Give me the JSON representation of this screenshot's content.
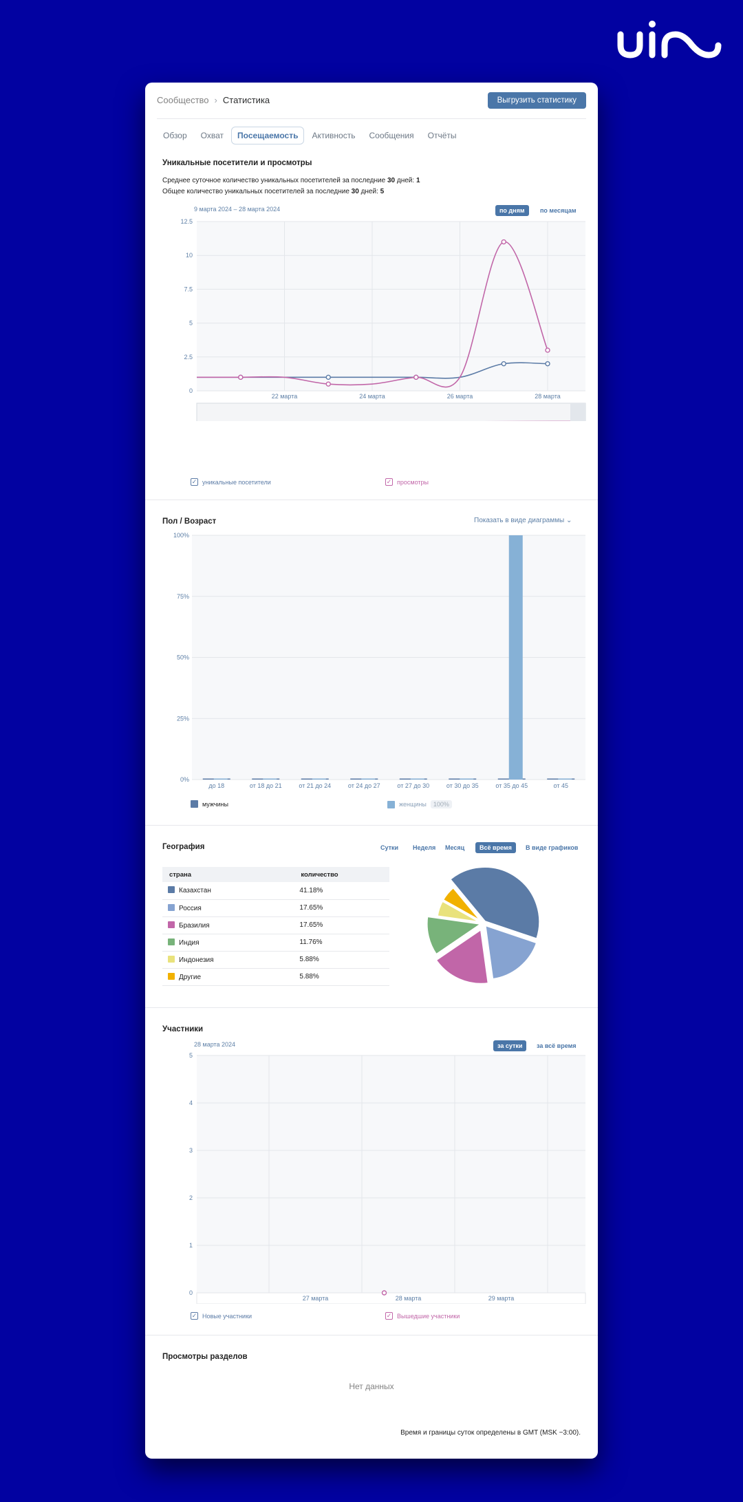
{
  "breadcrumb": {
    "parent": "Сообщество",
    "current": "Статистика"
  },
  "export_label": "Выгрузить статистику",
  "tabs": [
    {
      "label": "Обзор",
      "active": false
    },
    {
      "label": "Охват",
      "active": false
    },
    {
      "label": "Посещаемость",
      "active": true
    },
    {
      "label": "Активность",
      "active": false
    },
    {
      "label": "Сообщения",
      "active": false
    },
    {
      "label": "Отчёты",
      "active": false
    }
  ],
  "visitors": {
    "title": "Уникальные посетители и просмотры",
    "line1_prefix": "Среднее суточное количество уникальных посетителей за последние",
    "line1_days": "30",
    "line1_mid": "дней:",
    "line1_value": "1",
    "line2_prefix": "Общее количество уникальных посетителей за последние",
    "line2_days": "30",
    "line2_mid": "дней:",
    "line2_value": "5",
    "date_range": "9 марта 2024 – 28 марта 2024",
    "by_days": "по дням",
    "by_months": "по месяцам",
    "legend_unique": "уникальные посетители",
    "legend_views": "просмотры"
  },
  "gender": {
    "title": "Пол / Возраст",
    "show_as_chart": "Показать в виде диаграммы",
    "legend_men": "мужчины",
    "legend_women": "женщины",
    "women_badge": "100%"
  },
  "geo": {
    "title": "География",
    "filters": [
      "Сутки",
      "Неделя",
      "Месяц",
      "Всё время",
      "В виде графиков"
    ],
    "active_filter": "Всё время",
    "col_country": "страна",
    "col_count": "количество",
    "rows": [
      {
        "country": "Казахстан",
        "share": "41.18%",
        "color": "#5b7ba6"
      },
      {
        "country": "Россия",
        "share": "17.65%",
        "color": "#86a3d1"
      },
      {
        "country": "Бразилия",
        "share": "17.65%",
        "color": "#c166a8"
      },
      {
        "country": "Индия",
        "share": "11.76%",
        "color": "#78b37a"
      },
      {
        "country": "Индонезия",
        "share": "5.88%",
        "color": "#e9e27c"
      },
      {
        "country": "Другие",
        "share": "5.88%",
        "color": "#f1b100"
      }
    ]
  },
  "members": {
    "title": "Участники",
    "date": "28 марта 2024",
    "per_day": "за сутки",
    "all_time": "за всё время",
    "legend_new": "Новые участники",
    "legend_left": "Вышедшие участники"
  },
  "sections": {
    "title": "Просмотры разделов",
    "no_data": "Нет данных"
  },
  "timezone_note": "Время и границы суток определены в GMT (MSK −3:00).",
  "chart_data": [
    {
      "type": "line",
      "x": [
        "20 марта",
        "21 марта",
        "22 марта",
        "23 марта",
        "24 марта",
        "25 марта",
        "26 марта",
        "27 марта",
        "28 марта"
      ],
      "x_tick_labels": [
        "22 марта",
        "24 марта",
        "26 марта",
        "28 марта"
      ],
      "series": [
        {
          "name": "уникальные посетители",
          "color": "#5b7ba6",
          "values": [
            1,
            1,
            1,
            1,
            1,
            1,
            1,
            2,
            2
          ]
        },
        {
          "name": "просмотры",
          "color": "#c166a8",
          "values": [
            1,
            1,
            1,
            0.5,
            0.5,
            1,
            1,
            11,
            3
          ]
        }
      ],
      "y_ticks": [
        "0",
        "2.5",
        "5",
        "7.5",
        "10",
        "12.5"
      ],
      "ylim": [
        0,
        12.5
      ],
      "grid": true
    },
    {
      "type": "bar",
      "categories": [
        "до 18",
        "от 18 до 21",
        "от 21 до 24",
        "от 24 до 27",
        "от 27 до 30",
        "от 30 до 35",
        "от 35 до 45",
        "от 45"
      ],
      "series": [
        {
          "name": "мужчины",
          "color": "#5b7ba6",
          "values": [
            0,
            0,
            0,
            0,
            0,
            0,
            0,
            0
          ]
        },
        {
          "name": "женщины",
          "color": "#86b1d6",
          "values": [
            0,
            0,
            0,
            0,
            0,
            0,
            100,
            0
          ]
        }
      ],
      "y_ticks": [
        "0%",
        "25%",
        "50%",
        "75%",
        "100%"
      ],
      "ylim": [
        0,
        100
      ]
    },
    {
      "type": "pie",
      "labels": [
        "Казахстан",
        "Россия",
        "Бразилия",
        "Индия",
        "Индонезия",
        "Другие"
      ],
      "values": [
        41.18,
        17.65,
        17.65,
        11.76,
        5.88,
        5.88
      ]
    },
    {
      "type": "scatter",
      "x_tick_labels": [
        "27 марта",
        "28 марта",
        "29 марта"
      ],
      "series": [
        {
          "name": "Новые участники",
          "color": "#5b7ba6",
          "points": []
        },
        {
          "name": "Вышедшие участники",
          "color": "#c166a8",
          "points": [
            {
              "x": "28 марта",
              "y": 0
            }
          ]
        }
      ],
      "y_ticks": [
        "0",
        "1",
        "2",
        "3",
        "4",
        "5"
      ],
      "ylim": [
        0,
        5
      ]
    }
  ]
}
